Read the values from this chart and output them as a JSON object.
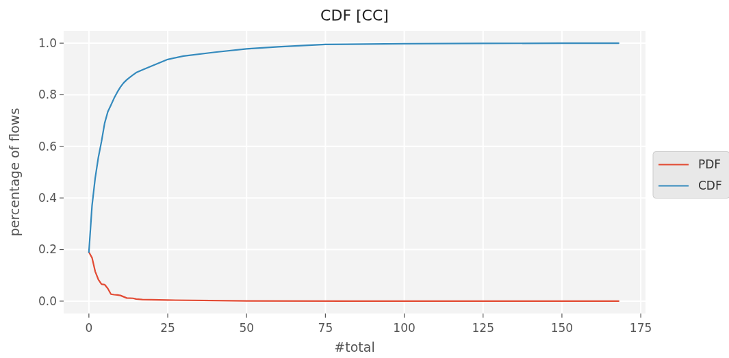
{
  "chart_data": {
    "type": "line",
    "title": "CDF  [CC]",
    "xlabel": "#total",
    "ylabel": "percentage of flows",
    "xlim": [
      -8,
      176.5
    ],
    "ylim": [
      -0.048,
      1.048
    ],
    "xticks": [
      0,
      25,
      50,
      75,
      100,
      125,
      150,
      175
    ],
    "yticks": [
      {
        "value": 0,
        "label": "0.0"
      },
      {
        "value": 0.2,
        "label": "0.2"
      },
      {
        "value": 0.4,
        "label": "0.4"
      },
      {
        "value": 0.6,
        "label": "0.6"
      },
      {
        "value": 0.8,
        "label": "0.8"
      },
      {
        "value": 1,
        "label": "1.0"
      }
    ],
    "grid": true,
    "legend": "right",
    "line_style": "solid",
    "marker": "none",
    "series": [
      {
        "name": "PDF",
        "color": "#e24a33",
        "x": [
          0,
          1,
          2,
          3,
          4,
          5,
          6,
          7,
          8,
          9,
          10,
          12,
          14,
          15,
          17,
          25,
          50,
          100,
          168
        ],
        "values": [
          0.19,
          0.168,
          0.115,
          0.084,
          0.066,
          0.064,
          0.049,
          0.027,
          0.025,
          0.024,
          0.022,
          0.012,
          0.011,
          0.008,
          0.006,
          0.004,
          0.001,
          0.0,
          0.0
        ]
      },
      {
        "name": "CDF",
        "color": "#348abd",
        "x": [
          0,
          1,
          2,
          3,
          4,
          5,
          6,
          7,
          8,
          9,
          10,
          11,
          12,
          13,
          14,
          15,
          17,
          20,
          25,
          30,
          40,
          50,
          60,
          75,
          100,
          125,
          150,
          168
        ],
        "values": [
          0.19,
          0.37,
          0.477,
          0.557,
          0.619,
          0.69,
          0.734,
          0.76,
          0.787,
          0.81,
          0.83,
          0.846,
          0.858,
          0.868,
          0.877,
          0.886,
          0.897,
          0.912,
          0.937,
          0.95,
          0.965,
          0.978,
          0.986,
          0.995,
          0.998,
          0.999,
          1.0,
          1.0
        ]
      }
    ]
  }
}
